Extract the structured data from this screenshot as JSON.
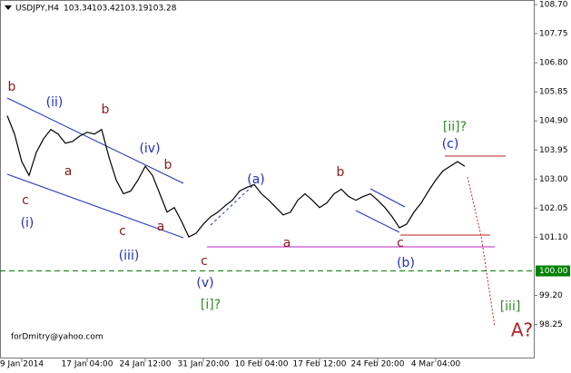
{
  "chart_data": {
    "type": "line",
    "symbol": "USDJPY,H4",
    "quote": [
      103.34,
      103.42,
      103.19,
      103.28
    ],
    "categories": [
      null,
      null,
      "9 Jan 2014",
      null,
      null,
      null,
      null,
      null,
      null,
      null,
      null,
      "17 Jan 04:00",
      null,
      null,
      null,
      null,
      null,
      null,
      null,
      "24 Jan 12:00",
      null,
      null,
      null,
      null,
      null,
      null,
      null,
      "31 Jan 20:00",
      null,
      null,
      null,
      null,
      null,
      null,
      null,
      "10 Feb 04:00",
      null,
      null,
      null,
      null,
      null,
      null,
      null,
      "17 Feb 12:00",
      null,
      null,
      null,
      null,
      null,
      null,
      null,
      "24 Feb 20:00",
      null,
      null,
      null,
      null,
      null,
      null,
      null,
      "4 Mar 04:00",
      null,
      null,
      null,
      null
    ],
    "series": [
      {
        "name": "USDJPY",
        "color": "#000000",
        "values": [
          105.07,
          104.47,
          103.57,
          103.12,
          103.87,
          104.32,
          104.62,
          104.47,
          104.17,
          104.23,
          104.41,
          104.53,
          104.47,
          104.62,
          103.72,
          102.97,
          102.52,
          102.61,
          102.97,
          103.42,
          103.12,
          102.52,
          101.92,
          102.07,
          101.62,
          101.11,
          101.23,
          101.53,
          101.77,
          101.92,
          102.13,
          102.31,
          102.61,
          102.73,
          102.82,
          102.52,
          102.31,
          102.07,
          101.83,
          101.92,
          102.31,
          102.52,
          102.31,
          102.07,
          102.22,
          102.52,
          102.67,
          102.43,
          102.31,
          102.43,
          102.52,
          102.31,
          102.07,
          101.77,
          101.41,
          101.53,
          101.92,
          102.22,
          102.61,
          102.97,
          103.27,
          103.42,
          103.57,
          103.42
        ]
      }
    ],
    "ylim": [
      97.14,
      108.85
    ],
    "yticks": [
      {
        "value": 108.7,
        "label": "108.70"
      },
      {
        "value": 107.75,
        "label": "107.75"
      },
      {
        "value": 106.8,
        "label": "106.80"
      },
      {
        "value": 105.85,
        "label": "105.85"
      },
      {
        "value": 104.9,
        "label": "104.90"
      },
      {
        "value": 103.95,
        "label": "103.95"
      },
      {
        "value": 103.0,
        "label": "103.00"
      },
      {
        "value": 102.05,
        "label": "102.05"
      },
      {
        "value": 101.1,
        "label": "101.10"
      },
      {
        "value": 99.2,
        "label": "99.20"
      },
      {
        "value": 98.25,
        "label": "98.25"
      }
    ],
    "level_line": {
      "value": 100,
      "label": "100.00",
      "color": "#008000"
    },
    "annotations": [
      {
        "text": "b",
        "color": "#8b1a1a"
      },
      {
        "text": "(ii)",
        "color": "#1f2fbf"
      },
      {
        "text": "b",
        "color": "#8b1a1a"
      },
      {
        "text": "c",
        "color": "#8b1a1a"
      },
      {
        "text": "a",
        "color": "#8b1a1a"
      },
      {
        "text": "(i)",
        "color": "#1f2fbf"
      },
      {
        "text": "(iv)",
        "color": "#1f2fbf"
      },
      {
        "text": "b",
        "color": "#8b1a1a"
      },
      {
        "text": "c",
        "color": "#8b1a1a"
      },
      {
        "text": "a",
        "color": "#8b1a1a"
      },
      {
        "text": "(iii)",
        "color": "#1f2fbf"
      },
      {
        "text": "c",
        "color": "#8b1a1a"
      },
      {
        "text": "(v)",
        "color": "#1f2fbf"
      },
      {
        "text": "[i]?",
        "color": "#2e8b22"
      },
      {
        "text": "(a)",
        "color": "#1f2fbf"
      },
      {
        "text": "a",
        "color": "#8b1a1a"
      },
      {
        "text": "b",
        "color": "#8b1a1a"
      },
      {
        "text": "c",
        "color": "#8b1a1a"
      },
      {
        "text": "(b)",
        "color": "#1f2fbf"
      },
      {
        "text": "(c)",
        "color": "#1f2fbf"
      },
      {
        "text": "[ii]?",
        "color": "#2e8b22"
      },
      {
        "text": "[iii]",
        "color": "#2e8b22"
      },
      {
        "text": "A?",
        "color": "#b22222"
      }
    ],
    "watermark": "forDmitry@yahoo.com"
  }
}
